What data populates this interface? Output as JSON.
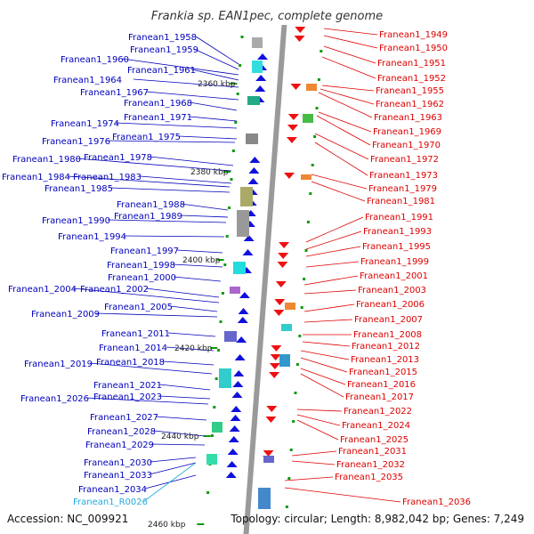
{
  "title": "Frankia sp. EAN1pec, complete genome",
  "footer": {
    "accession": "Accession: NC_009921",
    "topology": "Topology: circular; Length: 8,982,042 bp; Genes: 7,249"
  },
  "colors": {
    "left_label": "#0000bb",
    "right_label": "#dd0000",
    "rna_label": "#22aadd",
    "backbone": "#9a9a9a",
    "tick": "#119911"
  },
  "kbp_marks": [
    "2360 kbp",
    "2380 kbp",
    "2400 kbp",
    "2420 kbp",
    "2440 kbp",
    "2460 kbp"
  ],
  "left_labels": [
    "Franean1_1958",
    "Franean1_1959",
    "Franean1_1960",
    "Franean1_1961",
    "Franean1_1964",
    "Franean1_1967",
    "Franean1_1968",
    "Franean1_1971",
    "Franean1_1974",
    "Franean1_1975",
    "Franean1_1976",
    "Franean1_1978",
    "Franean1_1980",
    "Franean1_1983",
    "Franean1_1984",
    "Franean1_1985",
    "Franean1_1988",
    "Franean1_1989",
    "Franean1_1990",
    "Franean1_1994",
    "Franean1_1997",
    "Franean1_1998",
    "Franean1_2000",
    "Franean1_2002",
    "Franean1_2004",
    "Franean1_2005",
    "Franean1_2009",
    "Franean1_2011",
    "Franean1_2014",
    "Franean1_2018",
    "Franean1_2019",
    "Franean1_2021",
    "Franean1_2023",
    "Franean1_2026",
    "Franean1_2027",
    "Franean1_2028",
    "Franean1_2029",
    "Franean1_2030",
    "Franean1_2033",
    "Franean1_2034",
    "Franean1_R0026"
  ],
  "right_labels": [
    "Franean1_1949",
    "Franean1_1950",
    "Franean1_1951",
    "Franean1_1952",
    "Franean1_1955",
    "Franean1_1962",
    "Franean1_1963",
    "Franean1_1969",
    "Franean1_1970",
    "Franean1_1972",
    "Franean1_1973",
    "Franean1_1979",
    "Franean1_1981",
    "Franean1_1991",
    "Franean1_1993",
    "Franean1_1995",
    "Franean1_1999",
    "Franean1_2001",
    "Franean1_2003",
    "Franean1_2006",
    "Franean1_2007",
    "Franean1_2008",
    "Franean1_2012",
    "Franean1_2013",
    "Franean1_2015",
    "Franean1_2016",
    "Franean1_2017",
    "Franean1_2022",
    "Franean1_2024",
    "Franean1_2025",
    "Franean1_2031",
    "Franean1_2032",
    "Franean1_2035",
    "Franean1_2036"
  ]
}
